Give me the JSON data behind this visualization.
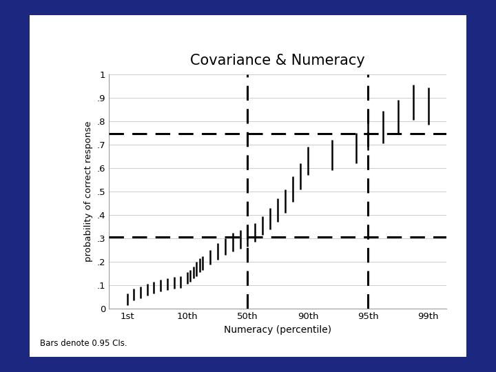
{
  "title": "Covariance & Numeracy",
  "xlabel": "Numeracy (percentile)",
  "ylabel": "probability of correct response",
  "footnote": "Bars denote 0.95 CIs.",
  "yticks": [
    0,
    0.1,
    0.2,
    0.3,
    0.4,
    0.5,
    0.6,
    0.7,
    0.8,
    0.9,
    1.0
  ],
  "ytick_labels": [
    "0",
    ".1",
    ".2",
    ".3",
    ".4",
    ".5",
    ".6",
    ".7",
    ".8",
    ".9",
    "1"
  ],
  "xtick_labels": [
    "1st",
    "10th",
    "50th",
    "90th",
    "95th",
    "99th"
  ],
  "xtick_percentiles": [
    1,
    10,
    50,
    90,
    95,
    99
  ],
  "hline1": 0.305,
  "hline2": 0.748,
  "vline_percentile1": 50,
  "vline_percentile2": 95,
  "background_color": "#1c2880",
  "panel_color": "#ffffff",
  "line_color": "#000000",
  "dashed_color": "#000000",
  "grid_color": "#cccccc",
  "percentile_positions": [
    1,
    2,
    3,
    4,
    5,
    6,
    7,
    8,
    9,
    10,
    12,
    14,
    16,
    18,
    20,
    25,
    30,
    35,
    40,
    45,
    50,
    55,
    60,
    65,
    70,
    75,
    80,
    85,
    90,
    92,
    94,
    95,
    96,
    97,
    98,
    99
  ],
  "center_values": [
    0.04,
    0.06,
    0.07,
    0.08,
    0.09,
    0.1,
    0.105,
    0.11,
    0.115,
    0.13,
    0.14,
    0.155,
    0.17,
    0.185,
    0.195,
    0.22,
    0.245,
    0.265,
    0.285,
    0.295,
    0.305,
    0.325,
    0.355,
    0.385,
    0.42,
    0.46,
    0.51,
    0.565,
    0.63,
    0.655,
    0.685,
    0.748,
    0.775,
    0.82,
    0.88,
    0.865
  ],
  "ci_half_widths": [
    0.025,
    0.025,
    0.025,
    0.025,
    0.025,
    0.025,
    0.025,
    0.025,
    0.025,
    0.025,
    0.025,
    0.025,
    0.03,
    0.03,
    0.03,
    0.03,
    0.035,
    0.035,
    0.04,
    0.04,
    0.04,
    0.04,
    0.04,
    0.045,
    0.05,
    0.05,
    0.055,
    0.055,
    0.06,
    0.065,
    0.065,
    0.07,
    0.07,
    0.07,
    0.075,
    0.08
  ]
}
